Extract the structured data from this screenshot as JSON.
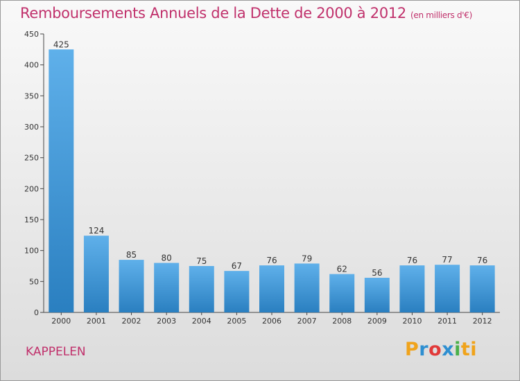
{
  "header": {
    "title": "Remboursements Annuels de la Dette de 2000 à 2012",
    "unit": "(en milliers d'€)"
  },
  "footer": {
    "commune": "KAPPELEN",
    "logo_letters": [
      "P",
      "r",
      "o",
      "x",
      "i",
      "ti"
    ]
  },
  "chart_data": {
    "type": "bar",
    "title": "Remboursements Annuels de la Dette de 2000 à 2012",
    "xlabel": "",
    "ylabel": "",
    "categories": [
      "2000",
      "2001",
      "2002",
      "2003",
      "2004",
      "2005",
      "2006",
      "2007",
      "2008",
      "2009",
      "2010",
      "2011",
      "2012"
    ],
    "values": [
      425,
      124,
      85,
      80,
      75,
      67,
      76,
      79,
      62,
      56,
      76,
      77,
      76
    ],
    "ylim": [
      0,
      450
    ],
    "yticks": [
      0,
      50,
      100,
      150,
      200,
      250,
      300,
      350,
      400,
      450
    ],
    "grid": false,
    "colors": {
      "bar_light": "#5fb0ea",
      "bar_dark": "#2a7fc0",
      "axis": "#444444",
      "text": "#333333"
    }
  }
}
